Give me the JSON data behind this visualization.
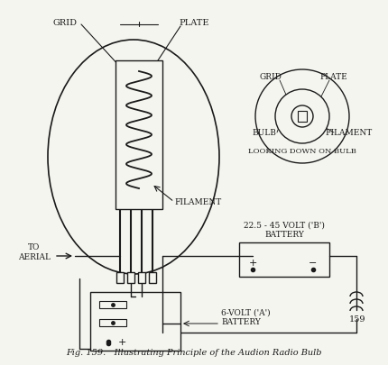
{
  "title": "Fig. 159.   Illustrating Principle of the Audion Radio Bulb",
  "page_number": "159",
  "bg_color": "#f5f5f0",
  "line_color": "#1a1a1a",
  "labels": {
    "grid_main": "GRID",
    "plate_main": "PLATE",
    "filament_main": "FILAMENT",
    "to_aerial": "TO\nAERIAL",
    "battery_b": "22.5 - 45 VOLT ('B')\nBATTERY",
    "battery_a": "6-VOLT ('A')\nBATTERY",
    "grid_inset": "GRID",
    "plate_inset": "PLATE",
    "bulb_inset": "BULB",
    "filament_inset": "FILAMENT",
    "looking_down": "LOOKING DOWN ON BULB"
  }
}
